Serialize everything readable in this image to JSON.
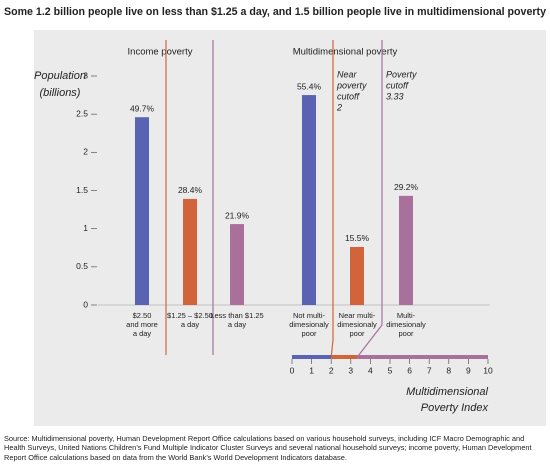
{
  "chart_data": {
    "type": "bar",
    "title": "Some 1.2 billion people live on less than $1.25 a day, and 1.5 billion people live in multidimensional poverty",
    "y_label": [
      "Population",
      "(billions)"
    ],
    "groups": [
      "Income poverty",
      "Multidimensional poverty"
    ],
    "categories": [
      [
        "$2.50",
        "and more",
        "a day"
      ],
      [
        "$1.25 – $2.50",
        "a day"
      ],
      [
        "Less than $1.25",
        "a day"
      ],
      [
        "Not multi-",
        "dimesionaly",
        "poor"
      ],
      [
        "Near multi-",
        "dimesionaly",
        "poor"
      ],
      [
        "Multi-",
        "dimesionaly",
        "poor"
      ]
    ],
    "values": [
      2.46,
      1.39,
      1.06,
      2.75,
      0.76,
      1.43
    ],
    "percent_labels": [
      "49.7%",
      "28.4%",
      "21.9%",
      "55.4%",
      "15.5%",
      "29.2%"
    ],
    "colors": [
      "#5a62b4",
      "#d2643c",
      "#a8709a",
      "#5a62b4",
      "#d2643c",
      "#a8709a"
    ],
    "ylim": [
      0,
      3
    ],
    "yticks": [
      0,
      0.5,
      1,
      1.5,
      2,
      2.5,
      3
    ],
    "annotations": [
      [
        "Near",
        "poverty",
        "cutoff",
        "2"
      ],
      [
        "Poverty",
        "cutoff",
        "3.33"
      ]
    ],
    "index_axis": {
      "title": [
        "Multidimensional",
        "Poverty Index"
      ],
      "xlim": [
        0,
        10
      ],
      "xticks": [
        0,
        1,
        2,
        3,
        4,
        5,
        6,
        7,
        8,
        9,
        10
      ],
      "cutoffs": [
        2,
        3.33
      ]
    }
  },
  "source": "Source: Multidimensional poverty, Human Development Report Office calculations based on various household surveys, including ICF Macro Demographic and Health Surveys, United Nations Children’s Fund Multiple Indicator Cluster Surveys and several national household surveys; income poverty, Human Development Report Office calculations based on data from the World Bank’s World Development Indicators database."
}
